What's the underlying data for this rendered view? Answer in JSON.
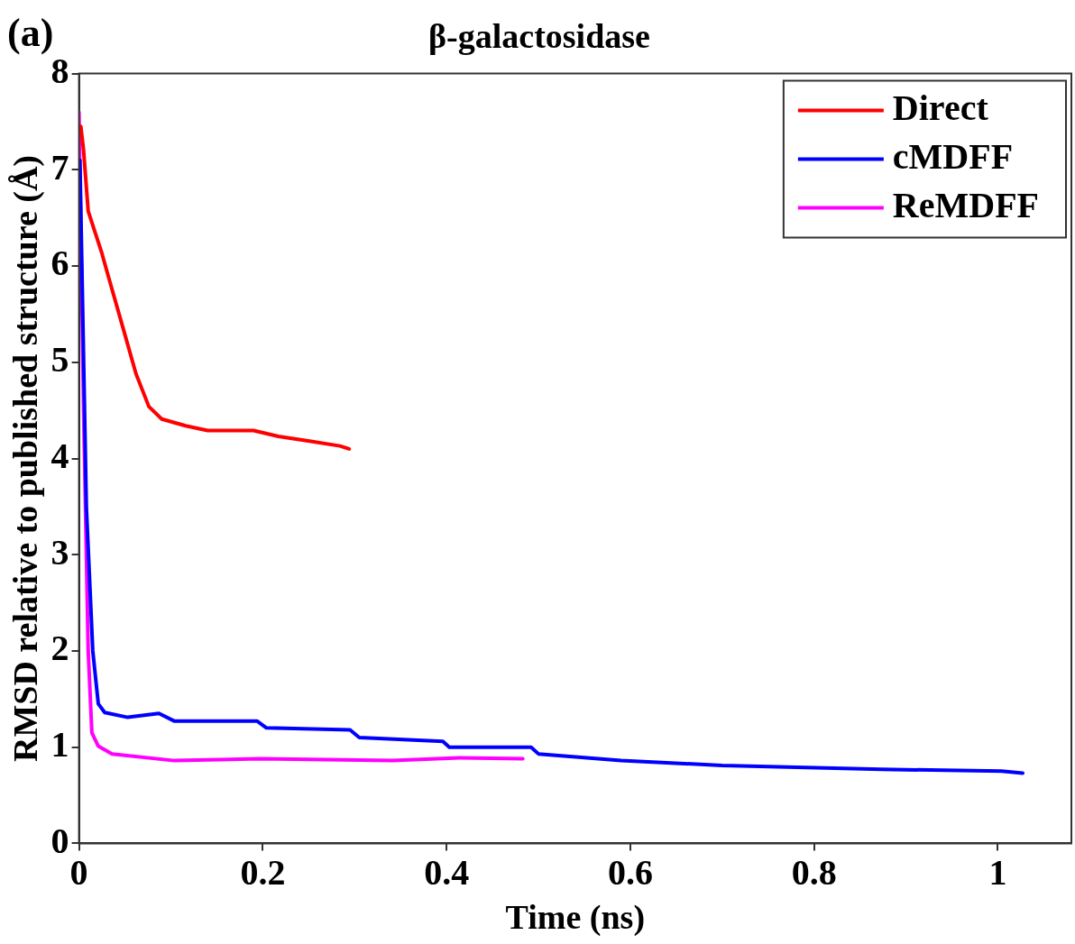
{
  "chart_data": {
    "type": "line",
    "title": "β-galactosidase",
    "xlabel": "Time (ns)",
    "ylabel": "RMSD relative to published structure (Å)",
    "annotations": [
      "(a)"
    ],
    "xlim": [
      0,
      1.08
    ],
    "xticks": [
      0,
      0.2,
      0.4,
      0.6,
      0.8,
      1
    ],
    "ylim": [
      0,
      8
    ],
    "yticks": [
      0,
      1,
      2,
      3,
      4,
      5,
      6,
      7,
      8
    ],
    "grid": false,
    "legend": "top right",
    "marker": "none",
    "line_style": "solid",
    "series": [
      {
        "name": "Direct",
        "color": "#ff0000",
        "x": [
          0.002,
          0.005,
          0.01,
          0.025,
          0.032,
          0.049,
          0.062,
          0.076,
          0.09,
          0.116,
          0.14,
          0.19,
          0.217,
          0.251,
          0.284,
          0.294
        ],
        "values": [
          7.45,
          7.2,
          6.57,
          6.13,
          5.89,
          5.32,
          4.88,
          4.54,
          4.41,
          4.34,
          4.29,
          4.29,
          4.23,
          4.18,
          4.13,
          4.1
        ]
      },
      {
        "name": "cMDFF",
        "color": "#0000ff",
        "x": [
          0.001,
          0.008,
          0.015,
          0.021,
          0.028,
          0.053,
          0.087,
          0.104,
          0.194,
          0.204,
          0.295,
          0.305,
          0.396,
          0.403,
          0.492,
          0.5,
          0.59,
          0.7,
          0.873,
          1.004,
          1.027
        ],
        "values": [
          7.1,
          3.5,
          2.0,
          1.45,
          1.36,
          1.31,
          1.35,
          1.27,
          1.27,
          1.2,
          1.18,
          1.1,
          1.06,
          1.0,
          1.0,
          0.93,
          0.86,
          0.81,
          0.77,
          0.75,
          0.73
        ]
      },
      {
        "name": "ReMDFF",
        "color": "#ff00ff",
        "x": [
          0.0,
          0.005,
          0.01,
          0.014,
          0.021,
          0.036,
          0.104,
          0.197,
          0.341,
          0.414,
          0.483
        ],
        "values": [
          7.6,
          4.5,
          2.0,
          1.15,
          1.01,
          0.93,
          0.86,
          0.88,
          0.86,
          0.89,
          0.88
        ]
      }
    ]
  }
}
